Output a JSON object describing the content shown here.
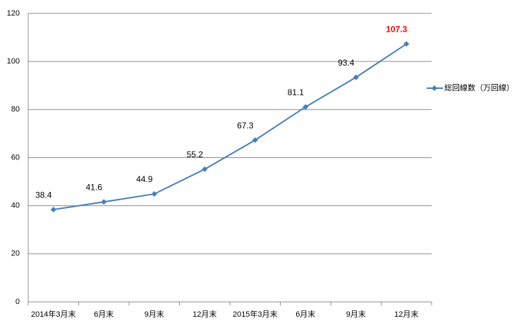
{
  "chart_data": {
    "type": "line",
    "categories": [
      "2014年3月末",
      "6月末",
      "9月末",
      "12月末",
      "2015年3月末",
      "6月末",
      "9月末",
      "12月末"
    ],
    "series": [
      {
        "name": "総回線数（万回線）",
        "color": "#4a7ebb",
        "values": [
          38.4,
          41.6,
          44.9,
          55.2,
          67.3,
          81.1,
          93.4,
          107.3
        ]
      }
    ],
    "value_label_colors": [
      "#000000",
      "#000000",
      "#000000",
      "#000000",
      "#000000",
      "#000000",
      "#000000",
      "#ff0000"
    ],
    "ylim": [
      0,
      120
    ],
    "yticks": [
      0,
      20,
      40,
      60,
      80,
      100,
      120
    ],
    "grid": true,
    "legend": "right"
  }
}
